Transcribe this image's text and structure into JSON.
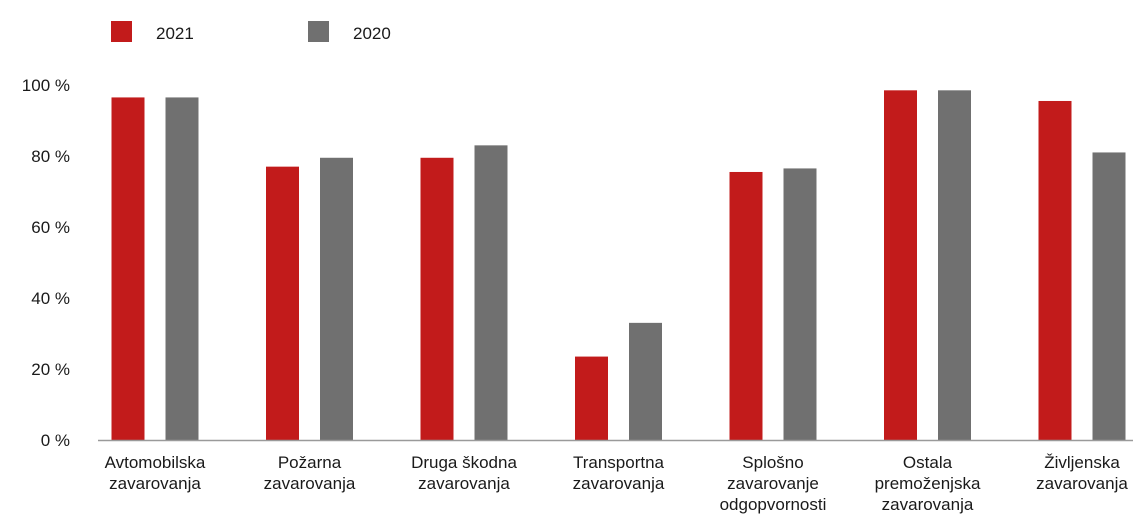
{
  "chart_data": {
    "type": "bar",
    "categories": [
      [
        "Avtomobilska",
        "zavarovanja"
      ],
      [
        "Požarna",
        "zavarovanja"
      ],
      [
        "Druga škodna",
        "zavarovanja"
      ],
      [
        "Transportna",
        "zavarovanja"
      ],
      [
        "Splošno",
        "zavarovanje",
        "odgopvornosti"
      ],
      [
        "Ostala",
        "premoženjska",
        "zavarovanja"
      ],
      [
        "Življenska",
        "zavarovanja"
      ]
    ],
    "series": [
      {
        "name": "2021",
        "color": "#c21b1b",
        "values": [
          96.5,
          77,
          79.5,
          23.5,
          75.5,
          98.5,
          95.5
        ]
      },
      {
        "name": "2020",
        "color": "#707070",
        "values": [
          96.5,
          79.5,
          83,
          33,
          76.5,
          98.5,
          81
        ]
      }
    ],
    "yticks": [
      "0 %",
      "20 %",
      "40 %",
      "60 %",
      "80 %",
      "100 %"
    ],
    "ylim": [
      0,
      100
    ],
    "grid": false,
    "legend": "top-left"
  }
}
